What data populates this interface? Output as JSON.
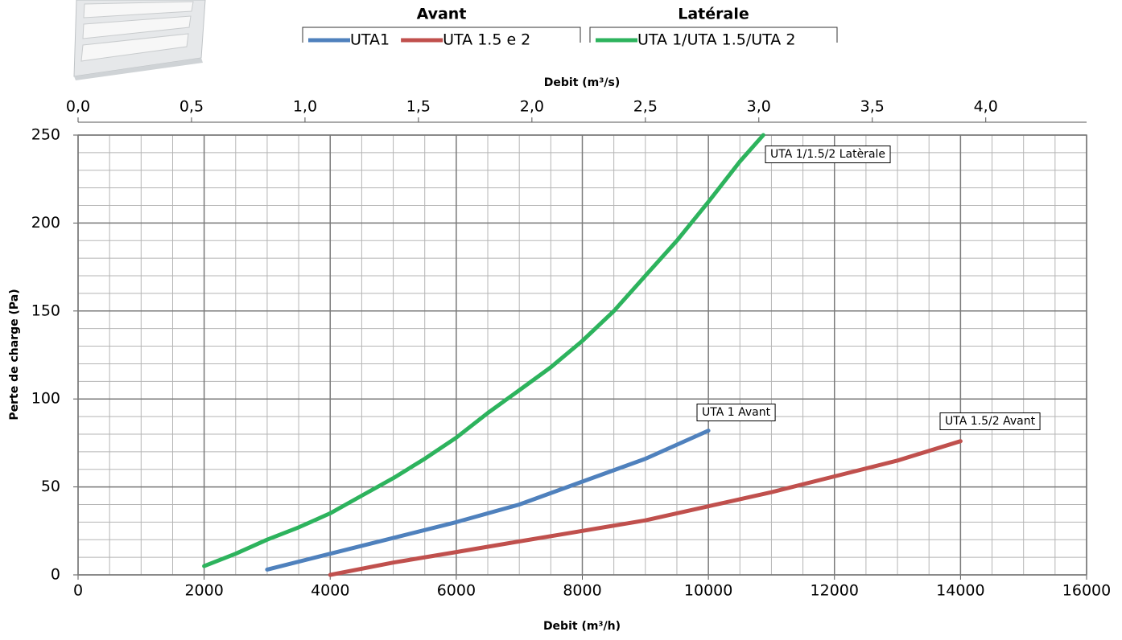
{
  "chart_data": {
    "type": "line",
    "x_title": "Debit (m³/h)",
    "x2_title": "Debit (m³/s)",
    "y_title": "Perte de charge (Pa)",
    "xlim": [
      0,
      16000
    ],
    "xticks": [
      0,
      2000,
      4000,
      6000,
      8000,
      10000,
      12000,
      14000,
      16000
    ],
    "x2lim": [
      0,
      4.4444
    ],
    "x2ticks": [
      {
        "value": 0,
        "label": "0,0"
      },
      {
        "value": 0.5,
        "label": "0,5"
      },
      {
        "value": 1,
        "label": "1,0"
      },
      {
        "value": 1.5,
        "label": "1,5"
      },
      {
        "value": 2,
        "label": "2,0"
      },
      {
        "value": 2.5,
        "label": "2,5"
      },
      {
        "value": 3,
        "label": "3,0"
      },
      {
        "value": 3.5,
        "label": "3,5"
      },
      {
        "value": 4,
        "label": "4,0"
      }
    ],
    "ylim": [
      0,
      250
    ],
    "yticks": [
      0,
      50,
      100,
      150,
      200,
      250
    ],
    "grid": true,
    "xminor": 500,
    "yminor": 10,
    "legend_groups": [
      "Avant",
      "Latérale"
    ],
    "series": [
      {
        "name": "UTA1",
        "color": "#4f81bd",
        "group": 0,
        "x": [
          3000,
          4000,
          5000,
          6000,
          7000,
          8000,
          9000,
          10000
        ],
        "values": [
          3,
          12,
          21,
          30,
          40,
          53,
          66,
          82
        ]
      },
      {
        "name": "UTA 1.5 e 2",
        "color": "#c0504d",
        "group": 0,
        "x": [
          4000,
          5000,
          6000,
          7000,
          8000,
          9000,
          10000,
          11000,
          12000,
          13000,
          14000
        ],
        "values": [
          0,
          7,
          13,
          19,
          25,
          31,
          39,
          47,
          56,
          65,
          76
        ]
      },
      {
        "name": "UTA 1/UTA 1.5/UTA 2",
        "color": "#2db35d",
        "group": 1,
        "x": [
          2000,
          2500,
          3000,
          3500,
          4000,
          4500,
          5000,
          5500,
          6000,
          6500,
          7000,
          7500,
          8000,
          8500,
          9000,
          9500,
          10000,
          10500,
          10870
        ],
        "values": [
          5,
          12,
          20,
          27,
          35,
          45,
          55,
          66,
          78,
          92,
          105,
          118,
          133,
          150,
          170,
          190,
          212,
          235,
          250
        ]
      }
    ],
    "annotations": [
      "UTA 1/1.5/2 Latèrale",
      "UTA 1 Avant",
      "UTA 1.5/2 Avant"
    ]
  }
}
